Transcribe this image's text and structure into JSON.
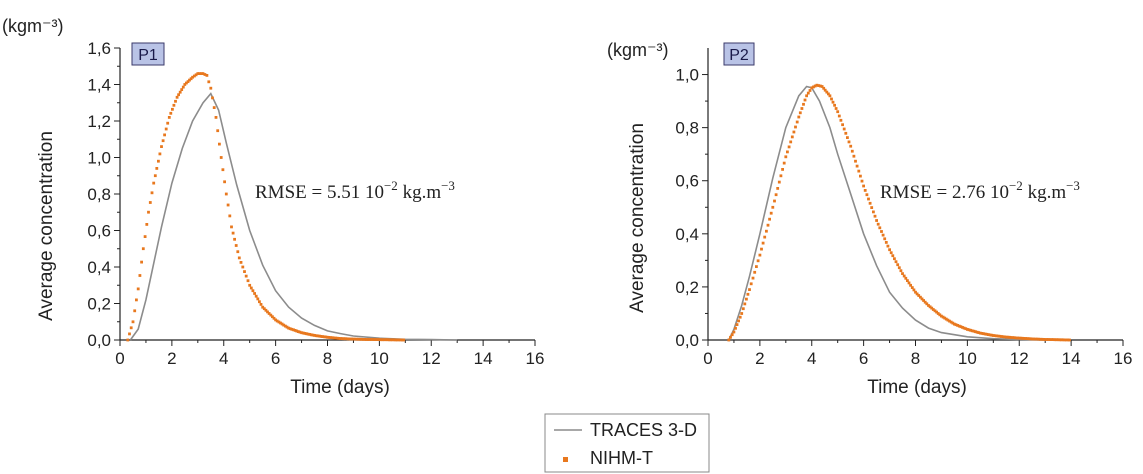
{
  "colors": {
    "traces": "#8c8c8c",
    "nihm": "#e8781e",
    "panel_bg": "#b9c3e6",
    "panel_border": "#3a3a6a"
  },
  "legend": {
    "items": [
      {
        "label": "TRACES 3-D",
        "style": "line",
        "color": "#8c8c8c"
      },
      {
        "label": "NIHM-T",
        "style": "dots",
        "color": "#e8781e"
      }
    ]
  },
  "chart_data": [
    {
      "type": "line",
      "panel_label": "P1",
      "unit_label": "(kgm⁻³)",
      "xlabel": "Time (days)",
      "ylabel": "Average concentration",
      "xlim": [
        0,
        16
      ],
      "ylim": [
        0,
        1.6
      ],
      "xticks": [
        0,
        2,
        4,
        6,
        8,
        10,
        12,
        14,
        16
      ],
      "yticks": [
        "0,0",
        "0,2",
        "0,4",
        "0,6",
        "0,8",
        "1,0",
        "1,2",
        "1,4",
        "1,6"
      ],
      "ytick_values": [
        0,
        0.2,
        0.4,
        0.6,
        0.8,
        1.0,
        1.2,
        1.4,
        1.6
      ],
      "annotation": {
        "text": "RMSE = 5.51 10",
        "sup1": "−2",
        "mid": " kg.m",
        "sup2": "−3"
      },
      "series": [
        {
          "name": "TRACES 3-D",
          "style": "line",
          "x": [
            0.4,
            0.7,
            1.0,
            1.3,
            1.6,
            2.0,
            2.4,
            2.8,
            3.2,
            3.5,
            3.8,
            4.1,
            4.5,
            5.0,
            5.5,
            6.0,
            6.5,
            7.0,
            7.5,
            8.0,
            8.5,
            9.0,
            10.0,
            11.0,
            12.0,
            13.0
          ],
          "y": [
            0.0,
            0.06,
            0.22,
            0.42,
            0.62,
            0.86,
            1.05,
            1.2,
            1.3,
            1.35,
            1.26,
            1.08,
            0.85,
            0.6,
            0.41,
            0.27,
            0.18,
            0.12,
            0.08,
            0.05,
            0.035,
            0.022,
            0.01,
            0.004,
            0.002,
            0.0
          ]
        },
        {
          "name": "NIHM-T",
          "style": "dots",
          "x": [
            0.3,
            0.5,
            0.7,
            0.9,
            1.1,
            1.3,
            1.6,
            1.9,
            2.2,
            2.5,
            2.8,
            3.0,
            3.2,
            3.35,
            3.5,
            3.7,
            3.9,
            4.1,
            4.3,
            4.6,
            5.0,
            5.5,
            6.0,
            6.5,
            7.0,
            7.5,
            8.0,
            8.5,
            9.0,
            9.5,
            10.0,
            10.5,
            11.0
          ],
          "y": [
            0.0,
            0.1,
            0.28,
            0.5,
            0.7,
            0.86,
            1.06,
            1.22,
            1.33,
            1.4,
            1.44,
            1.46,
            1.46,
            1.45,
            1.38,
            1.22,
            1.0,
            0.8,
            0.62,
            0.45,
            0.3,
            0.18,
            0.11,
            0.065,
            0.04,
            0.025,
            0.015,
            0.008,
            0.005,
            0.003,
            0.002,
            0.001,
            0.0
          ]
        }
      ]
    },
    {
      "type": "line",
      "panel_label": "P2",
      "unit_label": "(kgm⁻³)",
      "xlabel": "Time (days)",
      "ylabel": "Average concentration",
      "xlim": [
        0,
        16
      ],
      "ylim": [
        0,
        1.1
      ],
      "xticks": [
        0,
        2,
        4,
        6,
        8,
        10,
        12,
        14,
        16
      ],
      "yticks": [
        "0,0",
        "0,2",
        "0,4",
        "0,6",
        "0,8",
        "1,0"
      ],
      "ytick_values": [
        0,
        0.2,
        0.4,
        0.6,
        0.8,
        1.0
      ],
      "annotation": {
        "text": "RMSE = 2.76 10",
        "sup1": "−2",
        "mid": " kg.m",
        "sup2": "−3"
      },
      "series": [
        {
          "name": "TRACES 3-D",
          "style": "line",
          "x": [
            0.8,
            1.0,
            1.3,
            1.6,
            2.0,
            2.5,
            3.0,
            3.5,
            3.8,
            4.0,
            4.3,
            4.7,
            5.0,
            5.5,
            6.0,
            6.5,
            7.0,
            7.5,
            8.0,
            8.5,
            9.0,
            10.0,
            11.0,
            12.0,
            13.0
          ],
          "y": [
            0.0,
            0.04,
            0.13,
            0.24,
            0.4,
            0.61,
            0.8,
            0.92,
            0.955,
            0.95,
            0.9,
            0.8,
            0.7,
            0.55,
            0.4,
            0.28,
            0.18,
            0.12,
            0.075,
            0.045,
            0.028,
            0.012,
            0.005,
            0.002,
            0.0
          ]
        },
        {
          "name": "NIHM-T",
          "style": "dots",
          "x": [
            0.8,
            1.0,
            1.3,
            1.6,
            2.0,
            2.5,
            3.0,
            3.5,
            3.8,
            4.0,
            4.2,
            4.4,
            4.7,
            5.0,
            5.5,
            6.0,
            6.5,
            7.0,
            7.5,
            8.0,
            8.5,
            9.0,
            9.5,
            10.0,
            10.5,
            11.0,
            11.5,
            12.0,
            12.5,
            13.0,
            13.5,
            14.0
          ],
          "y": [
            0.0,
            0.03,
            0.1,
            0.19,
            0.32,
            0.5,
            0.69,
            0.84,
            0.92,
            0.95,
            0.96,
            0.955,
            0.92,
            0.86,
            0.73,
            0.58,
            0.45,
            0.34,
            0.25,
            0.18,
            0.13,
            0.09,
            0.06,
            0.04,
            0.026,
            0.017,
            0.011,
            0.007,
            0.004,
            0.002,
            0.001,
            0.0
          ]
        }
      ]
    }
  ]
}
